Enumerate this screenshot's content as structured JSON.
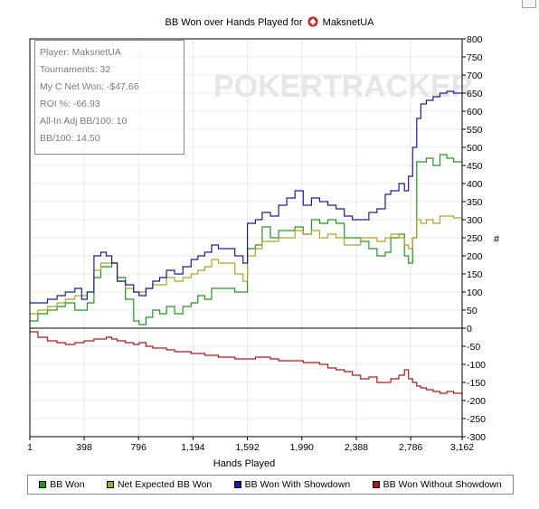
{
  "chart_data": {
    "type": "line",
    "title_prefix": "BB Won over Hands Played for",
    "player_name": "MaksnetUA",
    "watermark": "POKERTRACKER",
    "xlabel": "Hands Played",
    "ylabel": "#",
    "xlim": [
      1,
      3162
    ],
    "ylim": [
      -300,
      800
    ],
    "x_ticks": [
      1,
      398,
      796,
      1194,
      1592,
      1990,
      2388,
      2786,
      3162
    ],
    "x_tick_labels": [
      "1",
      "398",
      "796",
      "1,194",
      "1,592",
      "1,990",
      "2,388",
      "2,786",
      "3,162"
    ],
    "y_ticks": [
      -300,
      -250,
      -200,
      -150,
      -100,
      -50,
      0,
      50,
      100,
      150,
      200,
      250,
      300,
      350,
      400,
      450,
      500,
      550,
      600,
      650,
      700,
      750,
      800
    ],
    "legend_position": "bottom",
    "series": [
      {
        "name": "BB Won",
        "color": "#1a9a1a",
        "x": [
          1,
          60,
          130,
          200,
          260,
          330,
          380,
          420,
          470,
          520,
          560,
          600,
          640,
          700,
          760,
          800,
          850,
          900,
          950,
          1000,
          1060,
          1120,
          1180,
          1230,
          1280,
          1330,
          1380,
          1440,
          1500,
          1560,
          1592,
          1650,
          1700,
          1760,
          1820,
          1880,
          1940,
          2000,
          2060,
          2120,
          2180,
          2240,
          2300,
          2360,
          2420,
          2480,
          2540,
          2600,
          2640,
          2700,
          2740,
          2770,
          2800,
          2830,
          2860,
          2900,
          2950,
          3000,
          3050,
          3100,
          3162
        ],
        "values": [
          20,
          40,
          50,
          60,
          70,
          50,
          50,
          70,
          140,
          170,
          170,
          180,
          140,
          80,
          20,
          10,
          30,
          50,
          40,
          60,
          40,
          60,
          70,
          90,
          80,
          110,
          110,
          110,
          100,
          100,
          220,
          230,
          280,
          250,
          270,
          270,
          280,
          260,
          300,
          290,
          300,
          290,
          250,
          250,
          240,
          220,
          200,
          210,
          250,
          260,
          200,
          180,
          250,
          460,
          460,
          470,
          450,
          480,
          470,
          460,
          460
        ]
      },
      {
        "name": "Net Expected BB Won",
        "color": "#a8a820",
        "x": [
          1,
          60,
          130,
          200,
          260,
          330,
          380,
          420,
          470,
          520,
          560,
          600,
          640,
          700,
          760,
          800,
          850,
          900,
          950,
          1000,
          1060,
          1120,
          1180,
          1230,
          1280,
          1330,
          1380,
          1440,
          1500,
          1560,
          1592,
          1650,
          1700,
          1760,
          1820,
          1880,
          1940,
          2000,
          2060,
          2120,
          2180,
          2240,
          2300,
          2360,
          2420,
          2480,
          2540,
          2600,
          2640,
          2700,
          2740,
          2770,
          2800,
          2830,
          2860,
          2900,
          2950,
          3000,
          3050,
          3100,
          3162
        ],
        "values": [
          40,
          50,
          60,
          70,
          80,
          90,
          90,
          100,
          160,
          180,
          180,
          180,
          130,
          110,
          100,
          100,
          110,
          120,
          120,
          140,
          130,
          140,
          150,
          160,
          170,
          190,
          180,
          180,
          150,
          130,
          200,
          220,
          240,
          240,
          250,
          250,
          270,
          260,
          270,
          250,
          260,
          250,
          230,
          230,
          250,
          250,
          240,
          250,
          260,
          250,
          230,
          220,
          250,
          300,
          290,
          300,
          290,
          310,
          310,
          305,
          300
        ]
      },
      {
        "name": "BB Won With Showdown",
        "color": "#1a1aa0",
        "x": [
          1,
          60,
          130,
          200,
          260,
          330,
          380,
          420,
          470,
          520,
          560,
          600,
          640,
          700,
          760,
          800,
          850,
          900,
          950,
          1000,
          1060,
          1120,
          1180,
          1230,
          1280,
          1330,
          1380,
          1440,
          1500,
          1560,
          1592,
          1650,
          1700,
          1760,
          1820,
          1880,
          1940,
          2000,
          2060,
          2120,
          2180,
          2240,
          2300,
          2360,
          2420,
          2480,
          2540,
          2600,
          2640,
          2700,
          2740,
          2770,
          2800,
          2830,
          2860,
          2900,
          2950,
          3000,
          3050,
          3100,
          3162
        ],
        "values": [
          70,
          70,
          80,
          90,
          100,
          110,
          80,
          100,
          200,
          210,
          200,
          180,
          130,
          120,
          100,
          90,
          110,
          130,
          140,
          160,
          150,
          170,
          190,
          200,
          210,
          230,
          220,
          220,
          200,
          180,
          290,
          300,
          320,
          310,
          340,
          360,
          380,
          340,
          360,
          350,
          340,
          330,
          310,
          300,
          300,
          320,
          330,
          370,
          380,
          400,
          380,
          420,
          500,
          580,
          620,
          630,
          640,
          650,
          655,
          650,
          650
        ]
      },
      {
        "name": "BB Won Without Showdown",
        "color": "#b01818",
        "x": [
          1,
          60,
          130,
          200,
          260,
          330,
          398,
          470,
          520,
          560,
          600,
          640,
          700,
          760,
          800,
          850,
          900,
          950,
          1000,
          1060,
          1120,
          1180,
          1230,
          1280,
          1330,
          1380,
          1440,
          1500,
          1560,
          1592,
          1650,
          1700,
          1760,
          1820,
          1880,
          1940,
          2000,
          2060,
          2120,
          2180,
          2240,
          2300,
          2360,
          2420,
          2480,
          2540,
          2600,
          2640,
          2700,
          2740,
          2770,
          2800,
          2830,
          2860,
          2900,
          2950,
          3000,
          3050,
          3100,
          3162
        ],
        "values": [
          -10,
          -25,
          -35,
          -40,
          -45,
          -40,
          -35,
          -30,
          -30,
          -25,
          -30,
          -35,
          -40,
          -45,
          -40,
          -50,
          -55,
          -55,
          -60,
          -65,
          -65,
          -70,
          -70,
          -75,
          -75,
          -80,
          -80,
          -85,
          -85,
          -85,
          -80,
          -80,
          -85,
          -90,
          -90,
          -90,
          -95,
          -95,
          -100,
          -110,
          -115,
          -120,
          -130,
          -140,
          -135,
          -150,
          -150,
          -140,
          -130,
          -115,
          -140,
          -150,
          -160,
          -165,
          -170,
          -175,
          -180,
          -175,
          -180,
          -185
        ]
      }
    ],
    "stats": [
      {
        "label": "Player:",
        "value": "MaksnetUA"
      },
      {
        "label": "Tournaments:",
        "value": "32"
      },
      {
        "label": "My C Net Won:",
        "value": "-$47.66"
      },
      {
        "label": "ROI %:",
        "value": "-66.93"
      },
      {
        "label": "All-In Adj BB/100:",
        "value": "10"
      },
      {
        "label": "BB/100:",
        "value": "14.50"
      }
    ]
  }
}
